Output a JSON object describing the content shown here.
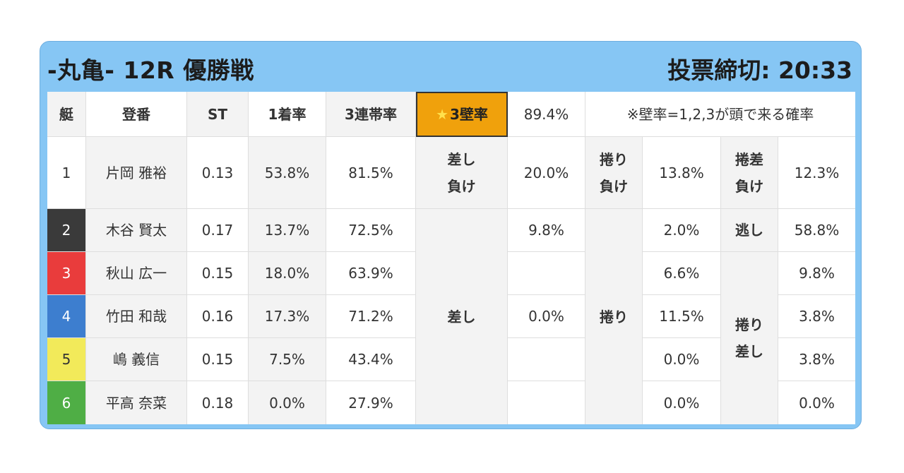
{
  "header": {
    "title": "-丸亀- 12R 優勝戦",
    "deadline": "投票締切: 20:33"
  },
  "columns": {
    "boat": "艇",
    "name": "登番",
    "st": "ST",
    "first_rate": "1着率",
    "top3_rate": "3連帯率",
    "wall_label": "3壁率",
    "wall_value": "89.4%",
    "note": "※壁率=1,2,3が頭で来る確率"
  },
  "icons": {
    "star": "★"
  },
  "colors": {
    "boat1": "#ffffff",
    "boat2": "#3a3a3a",
    "boat3": "#e93c3c",
    "boat4": "#3d7ecf",
    "boat5": "#f2ea5a",
    "boat6": "#4fae45",
    "highlight": "#f0a10c",
    "frame": "#86c6f4"
  },
  "rows": [
    {
      "num": "1",
      "name": "片岡 雅裕",
      "st": "0.13",
      "first": "53.8%",
      "top3": "81.5%"
    },
    {
      "num": "2",
      "name": "木谷 賢太",
      "st": "0.17",
      "first": "13.7%",
      "top3": "72.5%"
    },
    {
      "num": "3",
      "name": "秋山 広一",
      "st": "0.15",
      "first": "18.0%",
      "top3": "63.9%"
    },
    {
      "num": "4",
      "name": "竹田 和哉",
      "st": "0.16",
      "first": "17.3%",
      "top3": "71.2%"
    },
    {
      "num": "5",
      "name": "嶋 義信",
      "st": "0.15",
      "first": "7.5%",
      "top3": "43.4%"
    },
    {
      "num": "6",
      "name": "平高 奈菜",
      "st": "0.18",
      "first": "0.0%",
      "top3": "27.9%"
    }
  ],
  "row1_patterns": {
    "sashi_make": {
      "label_l1": "差し",
      "label_l2": "負け",
      "value": "20.0%"
    },
    "makuri_make": {
      "label_l1": "捲り",
      "label_l2": "負け",
      "value": "13.8%"
    },
    "makurizashi_make": {
      "label_l1": "捲差",
      "label_l2": "負け",
      "value": "12.3%"
    }
  },
  "sashi": {
    "label": "差し",
    "values": [
      "9.8%",
      "",
      "0.0%",
      "",
      ""
    ]
  },
  "makuri": {
    "label": "捲り",
    "values": [
      "2.0%",
      "6.6%",
      "11.5%",
      "0.0%",
      "0.0%"
    ]
  },
  "nige": {
    "label": "逃し",
    "value": "58.8%"
  },
  "makurizashi": {
    "label_l1": "捲り",
    "label_l2": "差し",
    "values": [
      "9.8%",
      "3.8%",
      "3.8%",
      "0.0%"
    ]
  }
}
